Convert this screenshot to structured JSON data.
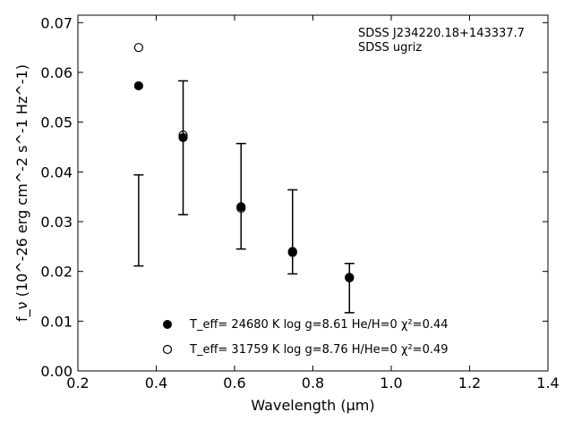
{
  "chart_data": {
    "type": "scatter",
    "title": "",
    "xlabel": "Wavelength (μm)",
    "ylabel": "f_ν (10^-26 erg cm^-2 s^-1 Hz^-1)",
    "xlim": [
      0.2,
      1.4
    ],
    "ylim": [
      0.0,
      0.0715
    ],
    "x_ticks": [
      0.2,
      0.4,
      0.6,
      0.8,
      1.0,
      1.2,
      1.4
    ],
    "x_tick_labels": [
      "0.2",
      "0.4",
      "0.6",
      "0.8",
      "1.0",
      "1.2",
      "1.4"
    ],
    "y_ticks": [
      0.0,
      0.01,
      0.02,
      0.03,
      0.04,
      0.05,
      0.06,
      0.07
    ],
    "y_tick_labels": [
      "0.00",
      "0.01",
      "0.02",
      "0.03",
      "0.04",
      "0.05",
      "0.06",
      "0.07"
    ],
    "annotation": [
      "SDSS J234220.18+143337.7",
      "SDSS ugriz"
    ],
    "grid": false,
    "legend_placement": "bottom-center",
    "observed": {
      "x": [
        0.3551,
        0.4686,
        0.6166,
        0.748,
        0.8932
      ],
      "low": [
        0.0211,
        0.0314,
        0.0245,
        0.0195,
        0.0117
      ],
      "high": [
        0.0394,
        0.0583,
        0.0457,
        0.0364,
        0.0216
      ]
    },
    "series": [
      {
        "name": "T_eff= 24680 K  log g=8.61  He/H=0  χ²=0.44",
        "marker": "filled-circle",
        "x": [
          0.3551,
          0.4686,
          0.6166,
          0.748,
          0.8932
        ],
        "values": [
          0.0573,
          0.0469,
          0.033,
          0.024,
          0.0188
        ]
      },
      {
        "name": "T_eff= 31759 K  log g=8.76  H/He=0  χ²=0.49",
        "marker": "open-circle",
        "x": [
          0.3551,
          0.4686,
          0.6166,
          0.748,
          0.8932
        ],
        "values": [
          0.065,
          0.0474,
          0.0327,
          0.0238,
          0.0187
        ]
      }
    ]
  }
}
